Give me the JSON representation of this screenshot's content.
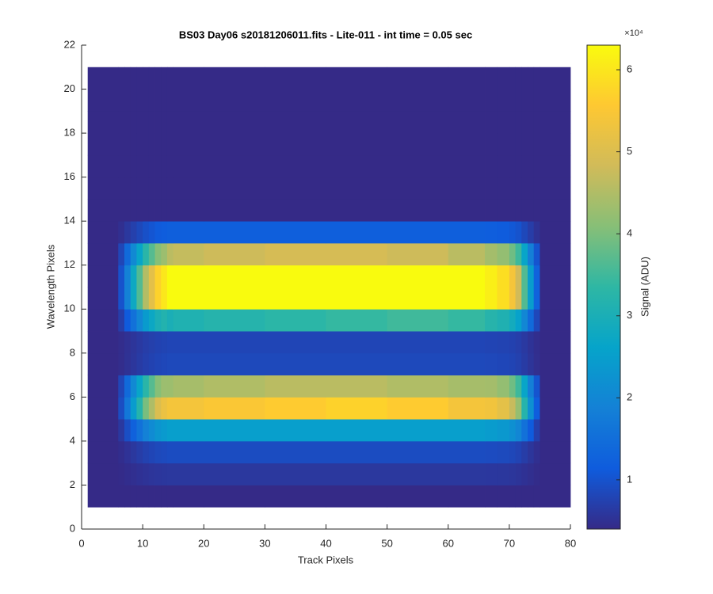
{
  "chart_data": {
    "type": "heatmap",
    "title": "BS03 Day06  s20181206011.fits - Lite-011 - int time = 0.05 sec",
    "x_label": "Track Pixels",
    "y_label": "Wavelength Pixels",
    "colorbar_label": "Signal (ADU)",
    "colorbar_multiplier": "×10⁴",
    "xlim": [
      0,
      80
    ],
    "ylim": [
      0,
      22
    ],
    "xticks": [
      0,
      10,
      20,
      30,
      40,
      50,
      60,
      70,
      80
    ],
    "yticks": [
      0,
      2,
      4,
      6,
      8,
      10,
      12,
      14,
      16,
      18,
      20,
      22
    ],
    "clim": [
      4000,
      63000
    ],
    "cticks": [
      {
        "value": 10000,
        "label": "1"
      },
      {
        "value": 20000,
        "label": "2"
      },
      {
        "value": 30000,
        "label": "3"
      },
      {
        "value": 40000,
        "label": "4"
      },
      {
        "value": 50000,
        "label": "5"
      },
      {
        "value": 60000,
        "label": "6"
      }
    ],
    "colormap": [
      "#352a87",
      "#0f5cdd",
      "#1481d6",
      "#06a4ca",
      "#2eb7a4",
      "#87bf77",
      "#d1bb59",
      "#fec832",
      "#f9fb0e"
    ],
    "x_edges": [
      1,
      6,
      7,
      8,
      9,
      10,
      11,
      12,
      13,
      14,
      15,
      20,
      30,
      40,
      50,
      60,
      66,
      68,
      70,
      71,
      72,
      73,
      74,
      75,
      80
    ],
    "y_edges": [
      1,
      2,
      3,
      4,
      5,
      6,
      7,
      8,
      9,
      10,
      11,
      12,
      13,
      14,
      15,
      16,
      17,
      18,
      19,
      20,
      21
    ],
    "z": [
      [
        4000,
        4000,
        4000,
        4000,
        4000,
        4000,
        4000,
        4000,
        4000,
        4000,
        4000,
        4000,
        4000,
        4000,
        4000,
        4000,
        4000,
        4000,
        4000,
        4000,
        4000,
        4000,
        4000,
        4000
      ],
      [
        4000,
        4200,
        4500,
        4800,
        5100,
        5400,
        5600,
        5800,
        5900,
        6000,
        6000,
        6000,
        6000,
        6000,
        6000,
        6000,
        5940,
        5860,
        5700,
        5500,
        5100,
        4700,
        4300,
        4000
      ],
      [
        4000,
        4500,
        5250,
        6000,
        6750,
        7500,
        8000,
        8500,
        8750,
        9000,
        9000,
        9000,
        9000,
        9000,
        9000,
        9000,
        8850,
        8650,
        8250,
        7750,
        6750,
        5750,
        4750,
        4000
      ],
      [
        4000,
        6100,
        9250,
        12400,
        15550,
        18700,
        20800,
        22900,
        23950,
        25000,
        25000,
        25000,
        25000,
        25000,
        25000,
        25000,
        24370,
        23530,
        21850,
        19750,
        15550,
        11350,
        7150,
        4000
      ],
      [
        4000,
        9100,
        16750,
        24400,
        32050,
        39700,
        44800,
        49900,
        52450,
        54000,
        54000,
        55000,
        56000,
        57000,
        56000,
        54000,
        53470,
        51430,
        47350,
        42250,
        32050,
        21850,
        11650,
        4000
      ],
      [
        4000,
        8100,
        14250,
        20400,
        26550,
        32700,
        36800,
        40900,
        42950,
        43000,
        44000,
        45000,
        46000,
        46000,
        45000,
        44000,
        43770,
        42130,
        38850,
        34750,
        26550,
        18350,
        10150,
        4000
      ],
      [
        4000,
        4450,
        5125,
        5800,
        6475,
        7150,
        7600,
        8050,
        8275,
        8500,
        8500,
        8500,
        8500,
        8500,
        8500,
        8500,
        8365,
        8185,
        7825,
        7375,
        6475,
        5575,
        4675,
        4000
      ],
      [
        4000,
        4400,
        5000,
        5600,
        6200,
        6800,
        7200,
        7600,
        7800,
        8000,
        8000,
        8000,
        8000,
        8000,
        8000,
        8000,
        7880,
        7720,
        7400,
        7000,
        6200,
        5400,
        4600,
        4000
      ],
      [
        4000,
        6900,
        11250,
        15600,
        19950,
        24300,
        27200,
        30100,
        31550,
        30000,
        31000,
        32000,
        33000,
        34000,
        35000,
        34000,
        32130,
        30970,
        28650,
        25750,
        19950,
        14100,
        8350,
        4000
      ],
      [
        4000,
        9900,
        18750,
        27600,
        36450,
        45300,
        51200,
        57100,
        60050,
        63000,
        63000,
        63000,
        63000,
        63000,
        63000,
        63000,
        61230,
        58870,
        54150,
        48250,
        36450,
        24650,
        12850,
        4000
      ],
      [
        4000,
        9900,
        18750,
        27600,
        36450,
        45300,
        51200,
        57100,
        60050,
        63000,
        63000,
        63000,
        63000,
        63000,
        63000,
        63000,
        61230,
        58870,
        54150,
        48250,
        36450,
        24650,
        12850,
        4000
      ],
      [
        4000,
        8100,
        14250,
        20400,
        26550,
        32700,
        36800,
        40900,
        42950,
        46000,
        47000,
        48000,
        49000,
        49000,
        48000,
        46000,
        43770,
        42130,
        38850,
        34750,
        26550,
        18350,
        10150,
        4000
      ],
      [
        4000,
        4800,
        6000,
        7200,
        8400,
        9600,
        10400,
        11200,
        11600,
        12000,
        12000,
        12000,
        12000,
        12000,
        12000,
        12000,
        11760,
        11440,
        10800,
        10000,
        8400,
        6800,
        5200,
        4000
      ],
      [
        4000,
        4000,
        4000,
        4000,
        4000,
        4000,
        4000,
        4000,
        4000,
        4000,
        4000,
        4000,
        4000,
        4000,
        4000,
        4000,
        4000,
        4000,
        4000,
        4000,
        4000,
        4000,
        4000,
        4000
      ],
      [
        4000,
        4000,
        4000,
        4000,
        4000,
        4000,
        4000,
        4000,
        4000,
        4000,
        4000,
        4000,
        4000,
        4000,
        4000,
        4000,
        4000,
        4000,
        4000,
        4000,
        4000,
        4000,
        4000,
        4000
      ],
      [
        4000,
        4000,
        4000,
        4000,
        4000,
        4000,
        4000,
        4000,
        4000,
        4000,
        4000,
        4000,
        4000,
        4000,
        4000,
        4000,
        4000,
        4000,
        4000,
        4000,
        4000,
        4000,
        4000,
        4000
      ],
      [
        4000,
        4000,
        4000,
        4000,
        4000,
        4000,
        4000,
        4000,
        4000,
        4000,
        4000,
        4000,
        4000,
        4000,
        4000,
        4000,
        4000,
        4000,
        4000,
        4000,
        4000,
        4000,
        4000,
        4000
      ],
      [
        4000,
        4000,
        4000,
        4000,
        4000,
        4000,
        4000,
        4000,
        4000,
        4000,
        4000,
        4000,
        4000,
        4000,
        4000,
        4000,
        4000,
        4000,
        4000,
        4000,
        4000,
        4000,
        4000,
        4000
      ],
      [
        4000,
        4000,
        4000,
        4000,
        4000,
        4000,
        4000,
        4000,
        4000,
        4000,
        4000,
        4000,
        4000,
        4000,
        4000,
        4000,
        4000,
        4000,
        4000,
        4000,
        4000,
        4000,
        4000,
        4000
      ],
      [
        4000,
        4000,
        4000,
        4000,
        4000,
        4000,
        4000,
        4000,
        4000,
        4000,
        4000,
        4000,
        4000,
        4000,
        4000,
        4000,
        4000,
        4000,
        4000,
        4000,
        4000,
        4000,
        4000,
        4000
      ]
    ]
  }
}
